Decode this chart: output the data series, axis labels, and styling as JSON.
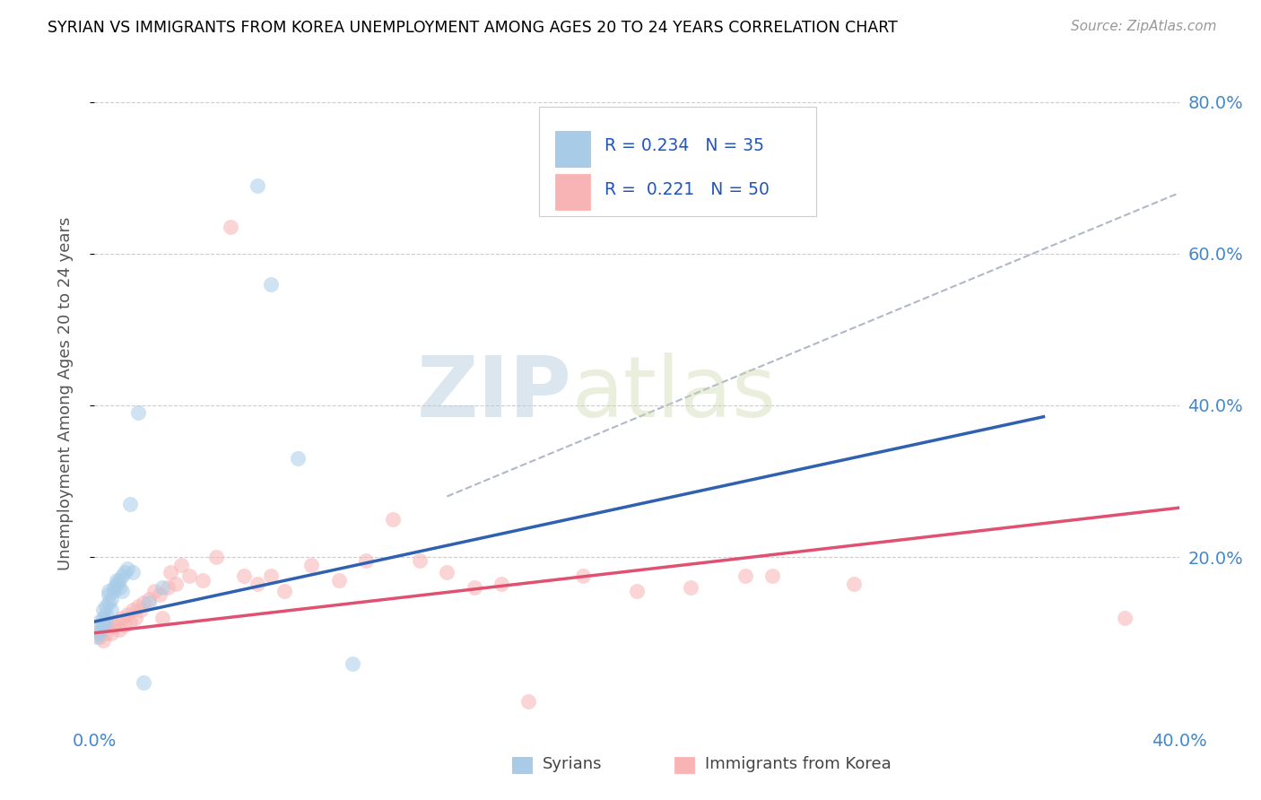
{
  "title": "SYRIAN VS IMMIGRANTS FROM KOREA UNEMPLOYMENT AMONG AGES 20 TO 24 YEARS CORRELATION CHART",
  "source": "Source: ZipAtlas.com",
  "ylabel": "Unemployment Among Ages 20 to 24 years",
  "xlabel_syrians": "Syrians",
  "xlabel_korea": "Immigrants from Korea",
  "xlim": [
    0.0,
    0.4
  ],
  "ylim": [
    -0.02,
    0.85
  ],
  "xticks": [
    0.0,
    0.1,
    0.2,
    0.3,
    0.4
  ],
  "yticks_right": [
    0.2,
    0.4,
    0.6,
    0.8
  ],
  "ytick_labels_right": [
    "20.0%",
    "40.0%",
    "60.0%",
    "80.0%"
  ],
  "xtick_labels": [
    "0.0%",
    "",
    "",
    "",
    "40.0%"
  ],
  "legend_R_syrian": "0.234",
  "legend_N_syrian": "35",
  "legend_R_korea": "0.221",
  "legend_N_korea": "50",
  "color_syrian": "#a8cce8",
  "color_korea": "#f8b4b4",
  "color_syrian_line": "#3060b0",
  "color_korea_line": "#e05070",
  "color_dashed": "#b0b8c8",
  "watermark_zip": "ZIP",
  "watermark_atlas": "atlas",
  "syrian_x": [
    0.001,
    0.001,
    0.002,
    0.002,
    0.003,
    0.003,
    0.003,
    0.004,
    0.004,
    0.004,
    0.005,
    0.005,
    0.005,
    0.006,
    0.006,
    0.007,
    0.007,
    0.008,
    0.008,
    0.009,
    0.009,
    0.01,
    0.01,
    0.011,
    0.012,
    0.013,
    0.014,
    0.016,
    0.018,
    0.02,
    0.025,
    0.06,
    0.065,
    0.075,
    0.095
  ],
  "syrian_y": [
    0.105,
    0.095,
    0.115,
    0.1,
    0.12,
    0.13,
    0.11,
    0.125,
    0.115,
    0.135,
    0.14,
    0.15,
    0.155,
    0.145,
    0.13,
    0.16,
    0.155,
    0.17,
    0.165,
    0.16,
    0.17,
    0.175,
    0.155,
    0.18,
    0.185,
    0.27,
    0.18,
    0.39,
    0.035,
    0.14,
    0.16,
    0.69,
    0.56,
    0.33,
    0.06
  ],
  "korea_x": [
    0.001,
    0.002,
    0.003,
    0.004,
    0.005,
    0.006,
    0.007,
    0.008,
    0.009,
    0.01,
    0.011,
    0.012,
    0.013,
    0.014,
    0.015,
    0.016,
    0.017,
    0.018,
    0.02,
    0.022,
    0.024,
    0.025,
    0.027,
    0.028,
    0.03,
    0.032,
    0.035,
    0.04,
    0.045,
    0.05,
    0.055,
    0.06,
    0.065,
    0.07,
    0.08,
    0.09,
    0.1,
    0.11,
    0.12,
    0.13,
    0.14,
    0.15,
    0.16,
    0.18,
    0.2,
    0.22,
    0.24,
    0.25,
    0.28,
    0.38
  ],
  "korea_y": [
    0.1,
    0.095,
    0.09,
    0.1,
    0.11,
    0.1,
    0.11,
    0.115,
    0.105,
    0.12,
    0.11,
    0.125,
    0.115,
    0.13,
    0.12,
    0.135,
    0.13,
    0.14,
    0.145,
    0.155,
    0.15,
    0.12,
    0.16,
    0.18,
    0.165,
    0.19,
    0.175,
    0.17,
    0.2,
    0.635,
    0.175,
    0.165,
    0.175,
    0.155,
    0.19,
    0.17,
    0.195,
    0.25,
    0.195,
    0.18,
    0.16,
    0.165,
    0.01,
    0.175,
    0.155,
    0.16,
    0.175,
    0.175,
    0.165,
    0.12
  ],
  "blue_line_x": [
    0.0,
    0.35
  ],
  "blue_line_y": [
    0.115,
    0.385
  ],
  "pink_line_x": [
    0.0,
    0.4
  ],
  "pink_line_y": [
    0.1,
    0.265
  ],
  "dashed_line_x": [
    0.13,
    0.4
  ],
  "dashed_line_y": [
    0.28,
    0.68
  ]
}
